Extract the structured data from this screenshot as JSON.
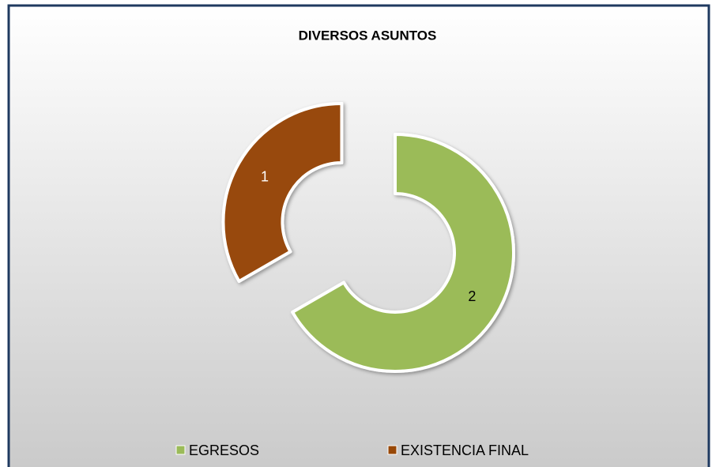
{
  "chart_data": {
    "type": "doughnut",
    "title": "DIVERSOS ASUNTOS",
    "categories": [
      "EGRESOS",
      "EXISTENCIA FINAL"
    ],
    "values": [
      2,
      1
    ],
    "colors": [
      "#9bbb59",
      "#984807"
    ],
    "label_colors": [
      "#000000",
      "#ffffff"
    ],
    "legend": "bottom"
  }
}
